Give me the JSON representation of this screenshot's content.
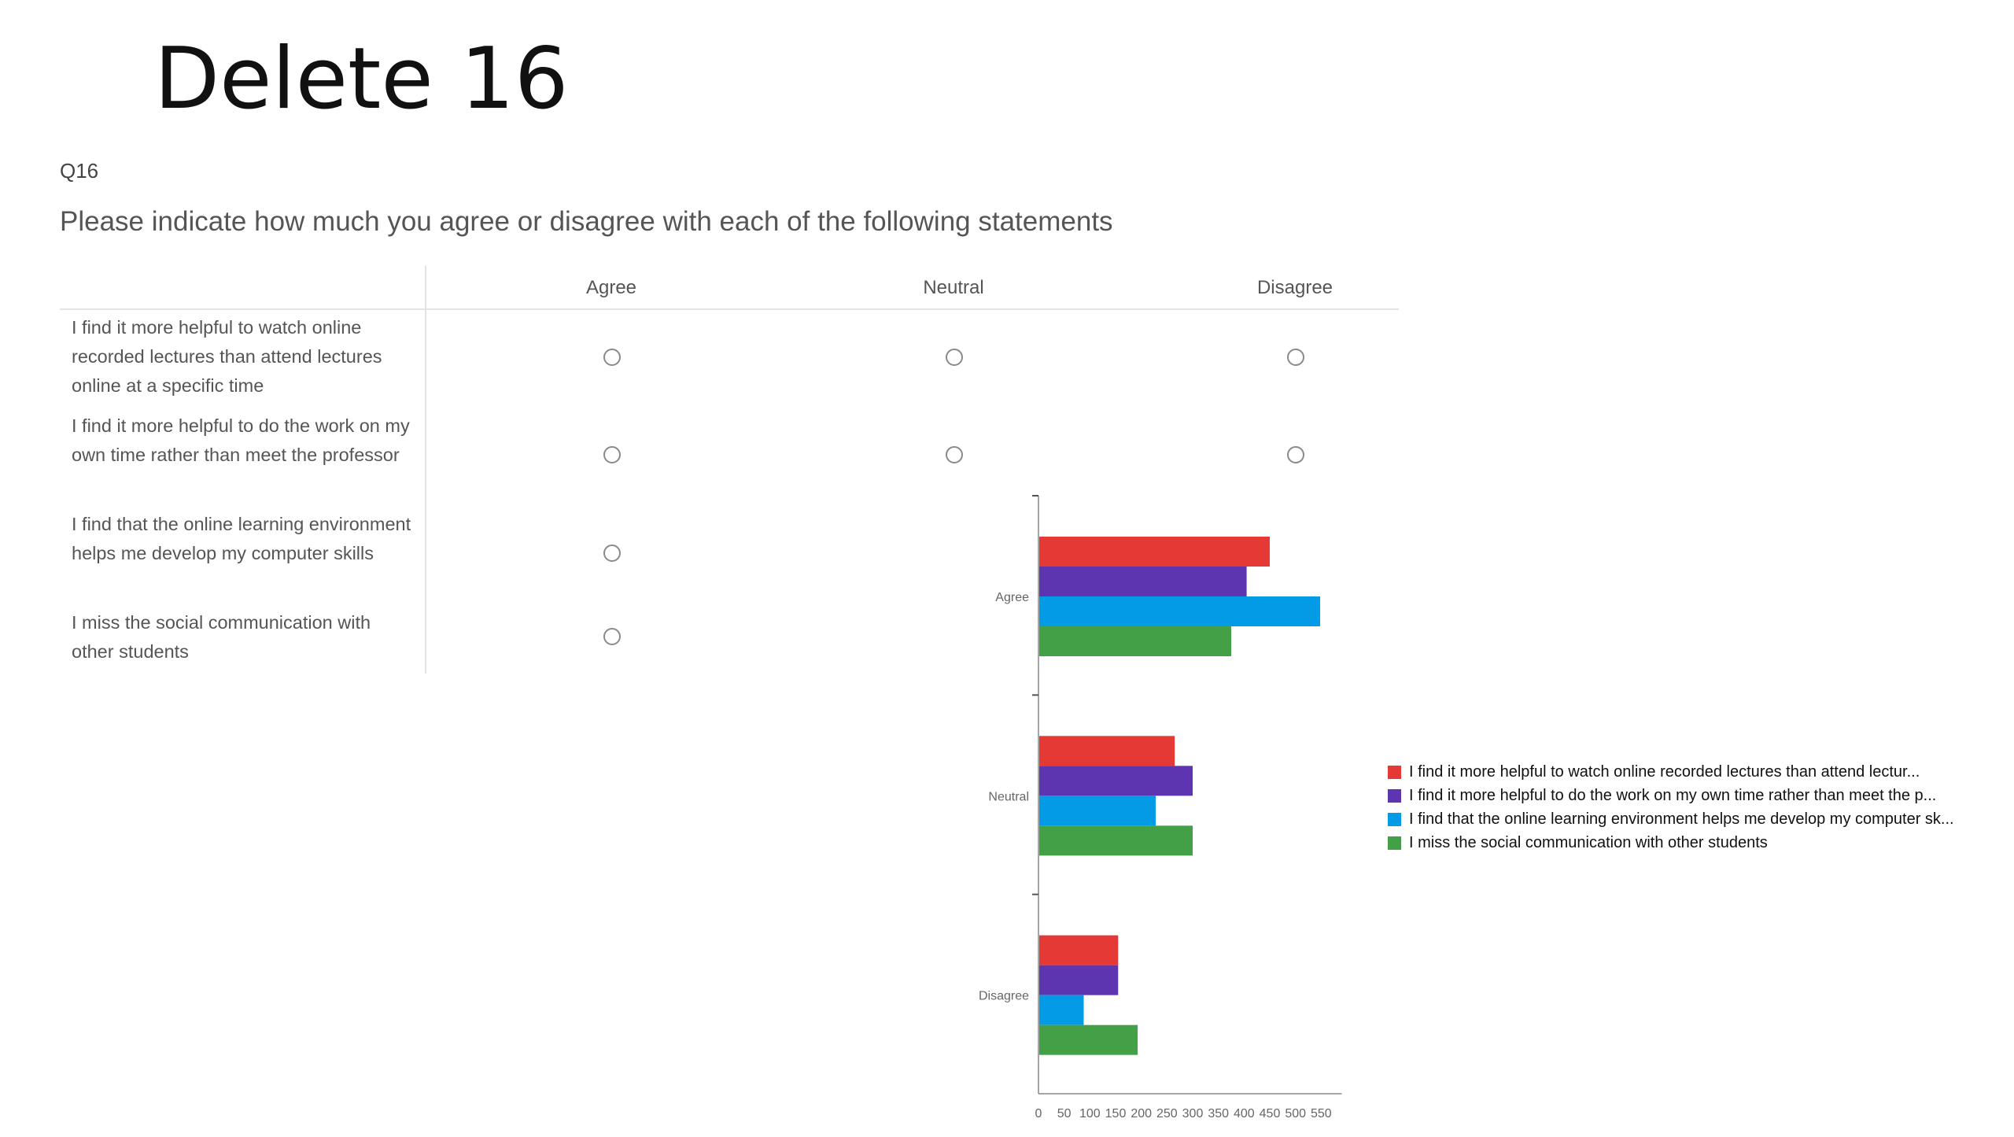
{
  "slide": {
    "title": "Delete 16"
  },
  "question": {
    "id": "Q16",
    "text": "Please indicate how much you agree or disagree with each of the following statements",
    "columns": [
      "Agree",
      "Neutral",
      "Disagree"
    ],
    "rows": [
      {
        "statement": "I find it more helpful to watch online recorded lectures than attend lectures online at a specific time"
      },
      {
        "statement": "I find it more helpful to do the work on my own time rather than meet the professor"
      },
      {
        "statement": "I find that the online learning environment helps me develop my computer skills"
      },
      {
        "statement": "I miss the social communication with other students"
      }
    ]
  },
  "chart_data": {
    "type": "bar",
    "orientation": "horizontal",
    "categories": [
      "Agree",
      "Neutral",
      "Disagree"
    ],
    "x_ticks": [
      0,
      50,
      100,
      150,
      200,
      250,
      300,
      350,
      400,
      450,
      500,
      550
    ],
    "xlim": [
      0,
      600
    ],
    "series": [
      {
        "name": "I find it more helpful to watch online recorded lectures than attend lectur...",
        "color": "#e53935",
        "values": [
          450,
          265,
          155
        ]
      },
      {
        "name": "I find it more helpful to do the work on my own time rather than meet the p...",
        "color": "#5e35b1",
        "values": [
          405,
          300,
          155
        ]
      },
      {
        "name": "I find that the online learning environment helps me develop my computer sk...",
        "color": "#039be5",
        "values": [
          548,
          228,
          88
        ]
      },
      {
        "name": "I miss the social communication with other students",
        "color": "#43a047",
        "values": [
          375,
          300,
          193
        ]
      }
    ],
    "legend_position": "right"
  }
}
